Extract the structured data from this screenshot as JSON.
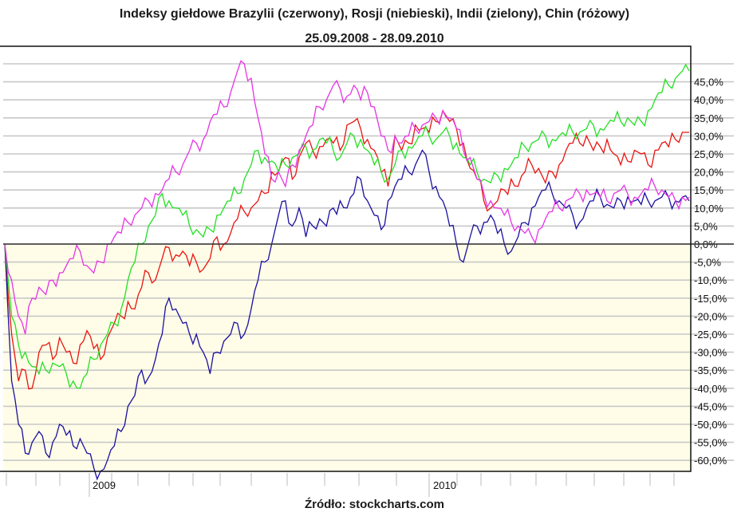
{
  "header": {
    "title": "Indeksy giełdowe Brazylii (czerwony), Rosji (niebieski), Indii (zielony), Chin (różowy)",
    "subtitle": "25.09.2008  -  28.09.2010"
  },
  "footer": {
    "source": "Źródło: stockcharts.com"
  },
  "colors": {
    "brazil": "#e8140f",
    "russia": "#1a0fa0",
    "india": "#22e022",
    "china": "#e633e6",
    "below_zero_bg": "#fffde8",
    "grid": "#c8c8c8"
  },
  "chart_data": {
    "type": "line",
    "title": "Indeksy giełdowe Brazylii (czerwony), Rosji (niebieski), Indii (zielony), Chin (różowy)",
    "subtitle": "25.09.2008 - 28.09.2010",
    "xlabel": "",
    "ylabel": "",
    "x_tick_labels": [
      "2009",
      "2010"
    ],
    "y_tick_labels": [
      "45,0%",
      "40,0%",
      "35,0%",
      "30,0%",
      "25,0%",
      "20,0%",
      "15,0%",
      "10,0%",
      "5,0%",
      "0,0%",
      "-5,0%",
      "-10,0%",
      "-15,0%",
      "-20,0%",
      "-25,0%",
      "-30,0%",
      "-35,0%",
      "-40,0%",
      "-45,0%",
      "-50,0%",
      "-55,0%",
      "-60,0%"
    ],
    "ylim": [
      -63,
      50
    ],
    "grid": true,
    "legend": "in title",
    "x": [
      0,
      1,
      2,
      3,
      4,
      5,
      6,
      7,
      8,
      9,
      10,
      11,
      12,
      13,
      14,
      15,
      16,
      17,
      18,
      19,
      20,
      21,
      22,
      23,
      24,
      25,
      26,
      27,
      28,
      29,
      30,
      31,
      32,
      33,
      34,
      35,
      36,
      37,
      38,
      39,
      40,
      41,
      42,
      43,
      44,
      45,
      46,
      47,
      48,
      49,
      50,
      51,
      52,
      53,
      54,
      55,
      56,
      57,
      58,
      59,
      60,
      61,
      62,
      63,
      64,
      65,
      66,
      67,
      68,
      69,
      70,
      71,
      72,
      73,
      74,
      75,
      76,
      77,
      78,
      79,
      80,
      81,
      82,
      83,
      84,
      85,
      86,
      87,
      88,
      89,
      90,
      91,
      92,
      93,
      94,
      95,
      96,
      97,
      98,
      99,
      100
    ],
    "series": [
      {
        "name": "Brazylia (czerwony)",
        "color": "#e8140f",
        "values": [
          0,
          -25,
          -38,
          -35,
          -40,
          -30,
          -28,
          -32,
          -26,
          -30,
          -33,
          -28,
          -24,
          -29,
          -32,
          -26,
          -22,
          -20,
          -16,
          -18,
          -12,
          -8,
          -10,
          -4,
          -1,
          -3,
          -2,
          -6,
          -5,
          -7,
          -4,
          2,
          0,
          3,
          7,
          9,
          10,
          12,
          14,
          20,
          20,
          24,
          18,
          24,
          28,
          26,
          27,
          29,
          28,
          26,
          33,
          34,
          32,
          29,
          26,
          20,
          16,
          30,
          26,
          28,
          33,
          32,
          31,
          34,
          37,
          34,
          32,
          28,
          21,
          18,
          12,
          10,
          12,
          15,
          18,
          16,
          20,
          22,
          21,
          17,
          20,
          22,
          26,
          28,
          28,
          30,
          26,
          27,
          29,
          25,
          22,
          23,
          26,
          25,
          22,
          26,
          28,
          27,
          29,
          31,
          31
        ]
      },
      {
        "name": "Rosja (niebieski)",
        "color": "#1a0fa0",
        "values": [
          0,
          -38,
          -50,
          -58,
          -55,
          -52,
          -58,
          -55,
          -50,
          -53,
          -56,
          -54,
          -58,
          -62,
          -63,
          -60,
          -56,
          -52,
          -45,
          -42,
          -35,
          -37,
          -32,
          -25,
          -15,
          -18,
          -22,
          -25,
          -25,
          -30,
          -36,
          -30,
          -27,
          -25,
          -22,
          -25,
          -18,
          -10,
          -5,
          0,
          8,
          12,
          5,
          10,
          2,
          5,
          7,
          5,
          10,
          12,
          10,
          14,
          18,
          12,
          8,
          4,
          12,
          16,
          18,
          20,
          22,
          26,
          20,
          16,
          12,
          5,
          0,
          -5,
          2,
          5,
          6,
          8,
          3,
          0,
          -2,
          2,
          6,
          10,
          13,
          15,
          14,
          12,
          10,
          8,
          6,
          10,
          12,
          13,
          11,
          10,
          12,
          13,
          12,
          11,
          12,
          12,
          13,
          13,
          12,
          13,
          12
        ]
      },
      {
        "name": "Indie (zielony)",
        "color": "#22e022",
        "values": [
          0,
          -20,
          -28,
          -30,
          -34,
          -36,
          -35,
          -33,
          -34,
          -36,
          -38,
          -40,
          -36,
          -32,
          -28,
          -25,
          -22,
          -18,
          -10,
          -5,
          0,
          5,
          8,
          14,
          12,
          10,
          8,
          5,
          4,
          2,
          4,
          8,
          10,
          12,
          14,
          18,
          22,
          26,
          24,
          23,
          20,
          22,
          24,
          25,
          27,
          26,
          29,
          28,
          26,
          24,
          28,
          30,
          29,
          26,
          22,
          20,
          18,
          22,
          26,
          27,
          28,
          30,
          30,
          29,
          31,
          30,
          28,
          24,
          22,
          20,
          18,
          17,
          19,
          21,
          22,
          24,
          27,
          28,
          29,
          30,
          29,
          30,
          30,
          31,
          31,
          32,
          33,
          32,
          33,
          34,
          34,
          35,
          33,
          34,
          37,
          40,
          42,
          44,
          46,
          48,
          48
        ]
      },
      {
        "name": "Chiny (różowy)",
        "color": "#e633e6",
        "values": [
          0,
          -10,
          -20,
          -25,
          -15,
          -12,
          -14,
          -10,
          -8,
          -6,
          -4,
          -2,
          -6,
          -8,
          -5,
          0,
          2,
          3,
          6,
          8,
          10,
          12,
          14,
          15,
          18,
          20,
          22,
          26,
          28,
          29,
          34,
          36,
          38,
          42,
          48,
          50,
          46,
          35,
          25,
          18,
          20,
          16,
          22,
          26,
          30,
          33,
          38,
          40,
          44,
          43,
          41,
          44,
          40,
          42,
          38,
          30,
          26,
          30,
          28,
          30,
          32,
          33,
          34,
          35,
          37,
          35,
          32,
          26,
          24,
          18,
          14,
          12,
          10,
          8,
          6,
          5,
          3,
          2,
          4,
          7,
          9,
          10,
          12,
          13,
          14,
          15,
          14,
          13,
          12,
          14,
          15,
          14,
          13,
          14,
          15,
          16,
          15,
          13,
          12,
          13,
          13
        ]
      }
    ]
  }
}
